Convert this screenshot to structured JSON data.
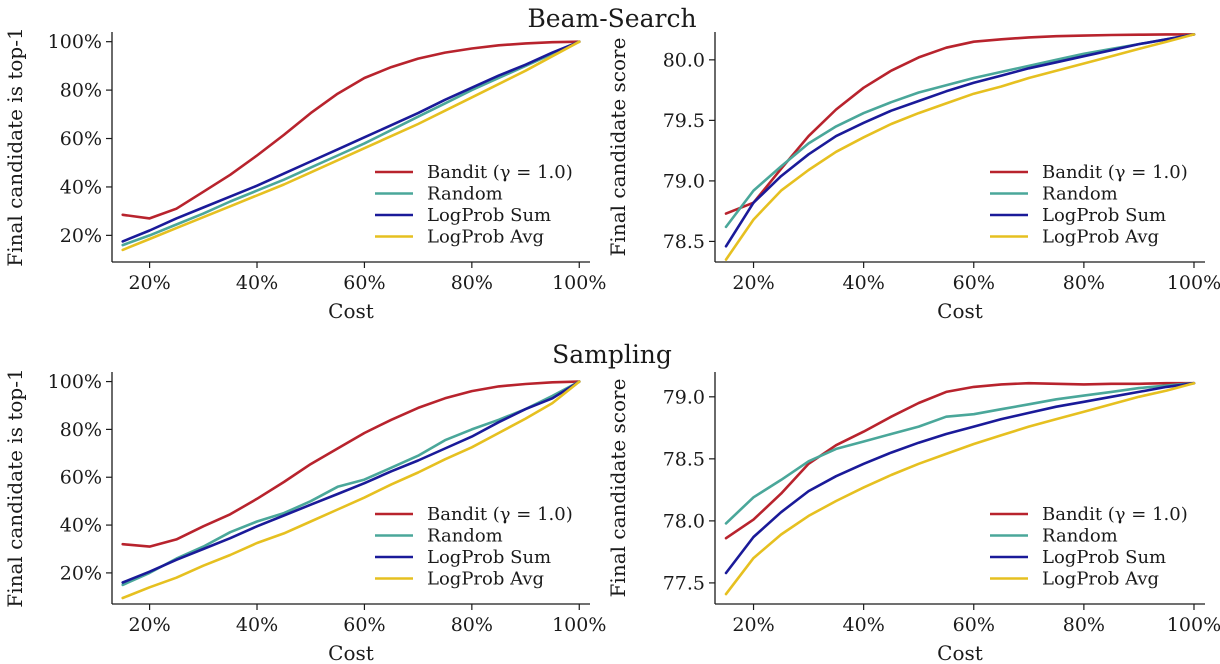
{
  "colors": {
    "bandit": "#b8232d",
    "random": "#4aa79a",
    "logprob_sum": "#1a1a99",
    "logprob_avg": "#e6c020",
    "axis": "#1a1a1a"
  },
  "chart_data": [
    {
      "type": "line",
      "title": "Beam-Search",
      "xlabel": "Cost",
      "ylabel": "Final candidate is top-1",
      "xlim": [
        0.13,
        1.02
      ],
      "ylim": [
        0.09,
        1.04
      ],
      "xticks": [
        0.2,
        0.4,
        0.6,
        0.8,
        1.0
      ],
      "xtick_labels": [
        "20%",
        "40%",
        "60%",
        "80%",
        "100%"
      ],
      "yticks": [
        0.2,
        0.4,
        0.6,
        0.8,
        1.0
      ],
      "ytick_labels": [
        "20%",
        "40%",
        "60%",
        "80%",
        "100%"
      ],
      "legend_position": "lower-right",
      "series": [
        {
          "name": "Bandit (γ = 1.0)",
          "color_key": "bandit",
          "x": [
            0.15,
            0.2,
            0.25,
            0.3,
            0.35,
            0.4,
            0.45,
            0.5,
            0.55,
            0.6,
            0.65,
            0.7,
            0.75,
            0.8,
            0.85,
            0.9,
            0.95,
            1.0
          ],
          "y": [
            0.285,
            0.27,
            0.31,
            0.38,
            0.45,
            0.53,
            0.615,
            0.705,
            0.785,
            0.85,
            0.895,
            0.93,
            0.955,
            0.972,
            0.985,
            0.993,
            0.998,
            1.0
          ]
        },
        {
          "name": "Random",
          "color_key": "random",
          "x": [
            0.15,
            0.2,
            0.25,
            0.3,
            0.35,
            0.4,
            0.45,
            0.5,
            0.55,
            0.6,
            0.65,
            0.7,
            0.75,
            0.8,
            0.85,
            0.9,
            0.95,
            1.0
          ],
          "y": [
            0.16,
            0.2,
            0.245,
            0.29,
            0.34,
            0.385,
            0.43,
            0.48,
            0.53,
            0.58,
            0.635,
            0.69,
            0.745,
            0.8,
            0.85,
            0.9,
            0.95,
            1.0
          ]
        },
        {
          "name": "LogProb Sum",
          "color_key": "logprob_sum",
          "x": [
            0.15,
            0.2,
            0.25,
            0.3,
            0.35,
            0.4,
            0.45,
            0.5,
            0.55,
            0.6,
            0.65,
            0.7,
            0.75,
            0.8,
            0.85,
            0.9,
            0.95,
            1.0
          ],
          "y": [
            0.175,
            0.22,
            0.27,
            0.315,
            0.36,
            0.405,
            0.455,
            0.505,
            0.555,
            0.605,
            0.655,
            0.705,
            0.76,
            0.81,
            0.86,
            0.905,
            0.955,
            1.0
          ]
        },
        {
          "name": "LogProb Avg",
          "color_key": "logprob_avg",
          "x": [
            0.15,
            0.2,
            0.25,
            0.3,
            0.35,
            0.4,
            0.45,
            0.5,
            0.55,
            0.6,
            0.65,
            0.7,
            0.75,
            0.8,
            0.85,
            0.9,
            0.95,
            1.0
          ],
          "y": [
            0.14,
            0.185,
            0.23,
            0.275,
            0.32,
            0.365,
            0.41,
            0.46,
            0.51,
            0.56,
            0.61,
            0.66,
            0.715,
            0.77,
            0.825,
            0.88,
            0.94,
            1.0
          ]
        }
      ]
    },
    {
      "type": "line",
      "title": "",
      "xlabel": "Cost",
      "ylabel": "Final candidate score",
      "xlim": [
        0.13,
        1.02
      ],
      "ylim": [
        78.33,
        80.23
      ],
      "xticks": [
        0.2,
        0.4,
        0.6,
        0.8,
        1.0
      ],
      "xtick_labels": [
        "20%",
        "40%",
        "60%",
        "80%",
        "100%"
      ],
      "yticks": [
        78.5,
        79.0,
        79.5,
        80.0
      ],
      "ytick_labels": [
        "78.5",
        "79.0",
        "79.5",
        "80.0"
      ],
      "legend_position": "lower-right",
      "series": [
        {
          "name": "Bandit (γ = 1.0)",
          "color_key": "bandit",
          "x": [
            0.15,
            0.2,
            0.25,
            0.3,
            0.35,
            0.4,
            0.45,
            0.5,
            0.55,
            0.6,
            0.65,
            0.7,
            0.75,
            0.8,
            0.85,
            0.9,
            0.95,
            1.0
          ],
          "y": [
            78.73,
            78.82,
            79.1,
            79.37,
            79.59,
            79.77,
            79.91,
            80.02,
            80.1,
            80.15,
            80.17,
            80.185,
            80.195,
            80.2,
            80.205,
            80.208,
            80.21,
            80.21
          ]
        },
        {
          "name": "Random",
          "color_key": "random",
          "x": [
            0.15,
            0.2,
            0.25,
            0.3,
            0.35,
            0.4,
            0.45,
            0.5,
            0.55,
            0.6,
            0.65,
            0.7,
            0.75,
            0.8,
            0.85,
            0.9,
            0.95,
            1.0
          ],
          "y": [
            78.62,
            78.92,
            79.12,
            79.31,
            79.45,
            79.56,
            79.65,
            79.73,
            79.79,
            79.85,
            79.9,
            79.95,
            80.0,
            80.05,
            80.09,
            80.13,
            80.17,
            80.21
          ]
        },
        {
          "name": "LogProb Sum",
          "color_key": "logprob_sum",
          "x": [
            0.15,
            0.2,
            0.25,
            0.3,
            0.35,
            0.4,
            0.45,
            0.5,
            0.55,
            0.6,
            0.65,
            0.7,
            0.75,
            0.8,
            0.85,
            0.9,
            0.95,
            1.0
          ],
          "y": [
            78.46,
            78.82,
            79.04,
            79.22,
            79.37,
            79.48,
            79.58,
            79.66,
            79.74,
            79.81,
            79.87,
            79.93,
            79.98,
            80.03,
            80.08,
            80.13,
            80.17,
            80.21
          ]
        },
        {
          "name": "LogProb Avg",
          "color_key": "logprob_avg",
          "x": [
            0.15,
            0.2,
            0.25,
            0.3,
            0.35,
            0.4,
            0.45,
            0.5,
            0.55,
            0.6,
            0.65,
            0.7,
            0.75,
            0.8,
            0.85,
            0.9,
            0.95,
            1.0
          ],
          "y": [
            78.35,
            78.68,
            78.92,
            79.09,
            79.24,
            79.36,
            79.47,
            79.56,
            79.64,
            79.72,
            79.78,
            79.85,
            79.91,
            79.97,
            80.03,
            80.09,
            80.15,
            80.21
          ]
        }
      ]
    },
    {
      "type": "line",
      "title": "Sampling",
      "xlabel": "Cost",
      "ylabel": "Final candidate is top-1",
      "xlim": [
        0.13,
        1.02
      ],
      "ylim": [
        0.07,
        1.04
      ],
      "xticks": [
        0.2,
        0.4,
        0.6,
        0.8,
        1.0
      ],
      "xtick_labels": [
        "20%",
        "40%",
        "60%",
        "80%",
        "100%"
      ],
      "yticks": [
        0.2,
        0.4,
        0.6,
        0.8,
        1.0
      ],
      "ytick_labels": [
        "20%",
        "40%",
        "60%",
        "80%",
        "100%"
      ],
      "legend_position": "lower-right",
      "series": [
        {
          "name": "Bandit (γ = 1.0)",
          "color_key": "bandit",
          "x": [
            0.15,
            0.2,
            0.25,
            0.3,
            0.35,
            0.4,
            0.45,
            0.5,
            0.55,
            0.6,
            0.65,
            0.7,
            0.75,
            0.8,
            0.85,
            0.9,
            0.95,
            1.0
          ],
          "y": [
            0.32,
            0.31,
            0.34,
            0.395,
            0.445,
            0.51,
            0.58,
            0.655,
            0.72,
            0.785,
            0.84,
            0.89,
            0.93,
            0.96,
            0.98,
            0.99,
            0.997,
            1.0
          ]
        },
        {
          "name": "Random",
          "color_key": "random",
          "x": [
            0.15,
            0.2,
            0.25,
            0.3,
            0.35,
            0.4,
            0.45,
            0.5,
            0.55,
            0.6,
            0.65,
            0.7,
            0.75,
            0.8,
            0.85,
            0.9,
            0.95,
            1.0
          ],
          "y": [
            0.15,
            0.2,
            0.26,
            0.31,
            0.37,
            0.415,
            0.45,
            0.5,
            0.56,
            0.59,
            0.64,
            0.69,
            0.755,
            0.8,
            0.84,
            0.885,
            0.94,
            1.0
          ]
        },
        {
          "name": "LogProb Sum",
          "color_key": "logprob_sum",
          "x": [
            0.15,
            0.2,
            0.25,
            0.3,
            0.35,
            0.4,
            0.45,
            0.5,
            0.55,
            0.6,
            0.65,
            0.7,
            0.75,
            0.8,
            0.85,
            0.9,
            0.95,
            1.0
          ],
          "y": [
            0.16,
            0.205,
            0.255,
            0.3,
            0.345,
            0.395,
            0.44,
            0.485,
            0.53,
            0.575,
            0.625,
            0.67,
            0.72,
            0.77,
            0.83,
            0.885,
            0.93,
            1.0
          ]
        },
        {
          "name": "LogProb Avg",
          "color_key": "logprob_avg",
          "x": [
            0.15,
            0.2,
            0.25,
            0.3,
            0.35,
            0.4,
            0.45,
            0.5,
            0.55,
            0.6,
            0.65,
            0.7,
            0.75,
            0.8,
            0.85,
            0.9,
            0.95,
            1.0
          ],
          "y": [
            0.095,
            0.14,
            0.18,
            0.23,
            0.275,
            0.325,
            0.365,
            0.415,
            0.465,
            0.515,
            0.57,
            0.62,
            0.675,
            0.725,
            0.785,
            0.845,
            0.91,
            1.0
          ]
        }
      ]
    },
    {
      "type": "line",
      "title": "",
      "xlabel": "Cost",
      "ylabel": "Final candidate score",
      "xlim": [
        0.13,
        1.02
      ],
      "ylim": [
        77.33,
        79.2
      ],
      "xticks": [
        0.2,
        0.4,
        0.6,
        0.8,
        1.0
      ],
      "xtick_labels": [
        "20%",
        "40%",
        "60%",
        "80%",
        "100%"
      ],
      "yticks": [
        77.5,
        78.0,
        78.5,
        79.0
      ],
      "ytick_labels": [
        "77.5",
        "78.0",
        "78.5",
        "79.0"
      ],
      "legend_position": "lower-right",
      "series": [
        {
          "name": "Bandit (γ = 1.0)",
          "color_key": "bandit",
          "x": [
            0.15,
            0.2,
            0.25,
            0.3,
            0.35,
            0.4,
            0.45,
            0.5,
            0.55,
            0.6,
            0.65,
            0.7,
            0.75,
            0.8,
            0.85,
            0.9,
            0.95,
            1.0
          ],
          "y": [
            77.86,
            78.01,
            78.22,
            78.46,
            78.61,
            78.72,
            78.84,
            78.95,
            79.04,
            79.08,
            79.1,
            79.11,
            79.105,
            79.1,
            79.105,
            79.105,
            79.11,
            79.11
          ]
        },
        {
          "name": "Random",
          "color_key": "random",
          "x": [
            0.15,
            0.2,
            0.25,
            0.3,
            0.35,
            0.4,
            0.45,
            0.5,
            0.55,
            0.6,
            0.65,
            0.7,
            0.75,
            0.8,
            0.85,
            0.9,
            0.95,
            1.0
          ],
          "y": [
            77.98,
            78.19,
            78.33,
            78.48,
            78.58,
            78.64,
            78.7,
            78.76,
            78.84,
            78.86,
            78.9,
            78.94,
            78.98,
            79.01,
            79.04,
            79.07,
            79.09,
            79.11
          ]
        },
        {
          "name": "LogProb Sum",
          "color_key": "logprob_sum",
          "x": [
            0.15,
            0.2,
            0.25,
            0.3,
            0.35,
            0.4,
            0.45,
            0.5,
            0.55,
            0.6,
            0.65,
            0.7,
            0.75,
            0.8,
            0.85,
            0.9,
            0.95,
            1.0
          ],
          "y": [
            77.58,
            77.87,
            78.07,
            78.24,
            78.36,
            78.46,
            78.55,
            78.63,
            78.7,
            78.76,
            78.82,
            78.87,
            78.92,
            78.96,
            79.0,
            79.04,
            79.08,
            79.11
          ]
        },
        {
          "name": "LogProb Avg",
          "color_key": "logprob_avg",
          "x": [
            0.15,
            0.2,
            0.25,
            0.3,
            0.35,
            0.4,
            0.45,
            0.5,
            0.55,
            0.6,
            0.65,
            0.7,
            0.75,
            0.8,
            0.85,
            0.9,
            0.95,
            1.0
          ],
          "y": [
            77.41,
            77.7,
            77.89,
            78.04,
            78.16,
            78.27,
            78.37,
            78.46,
            78.54,
            78.62,
            78.69,
            78.76,
            78.82,
            78.88,
            78.94,
            79.0,
            79.05,
            79.11
          ]
        }
      ]
    }
  ]
}
